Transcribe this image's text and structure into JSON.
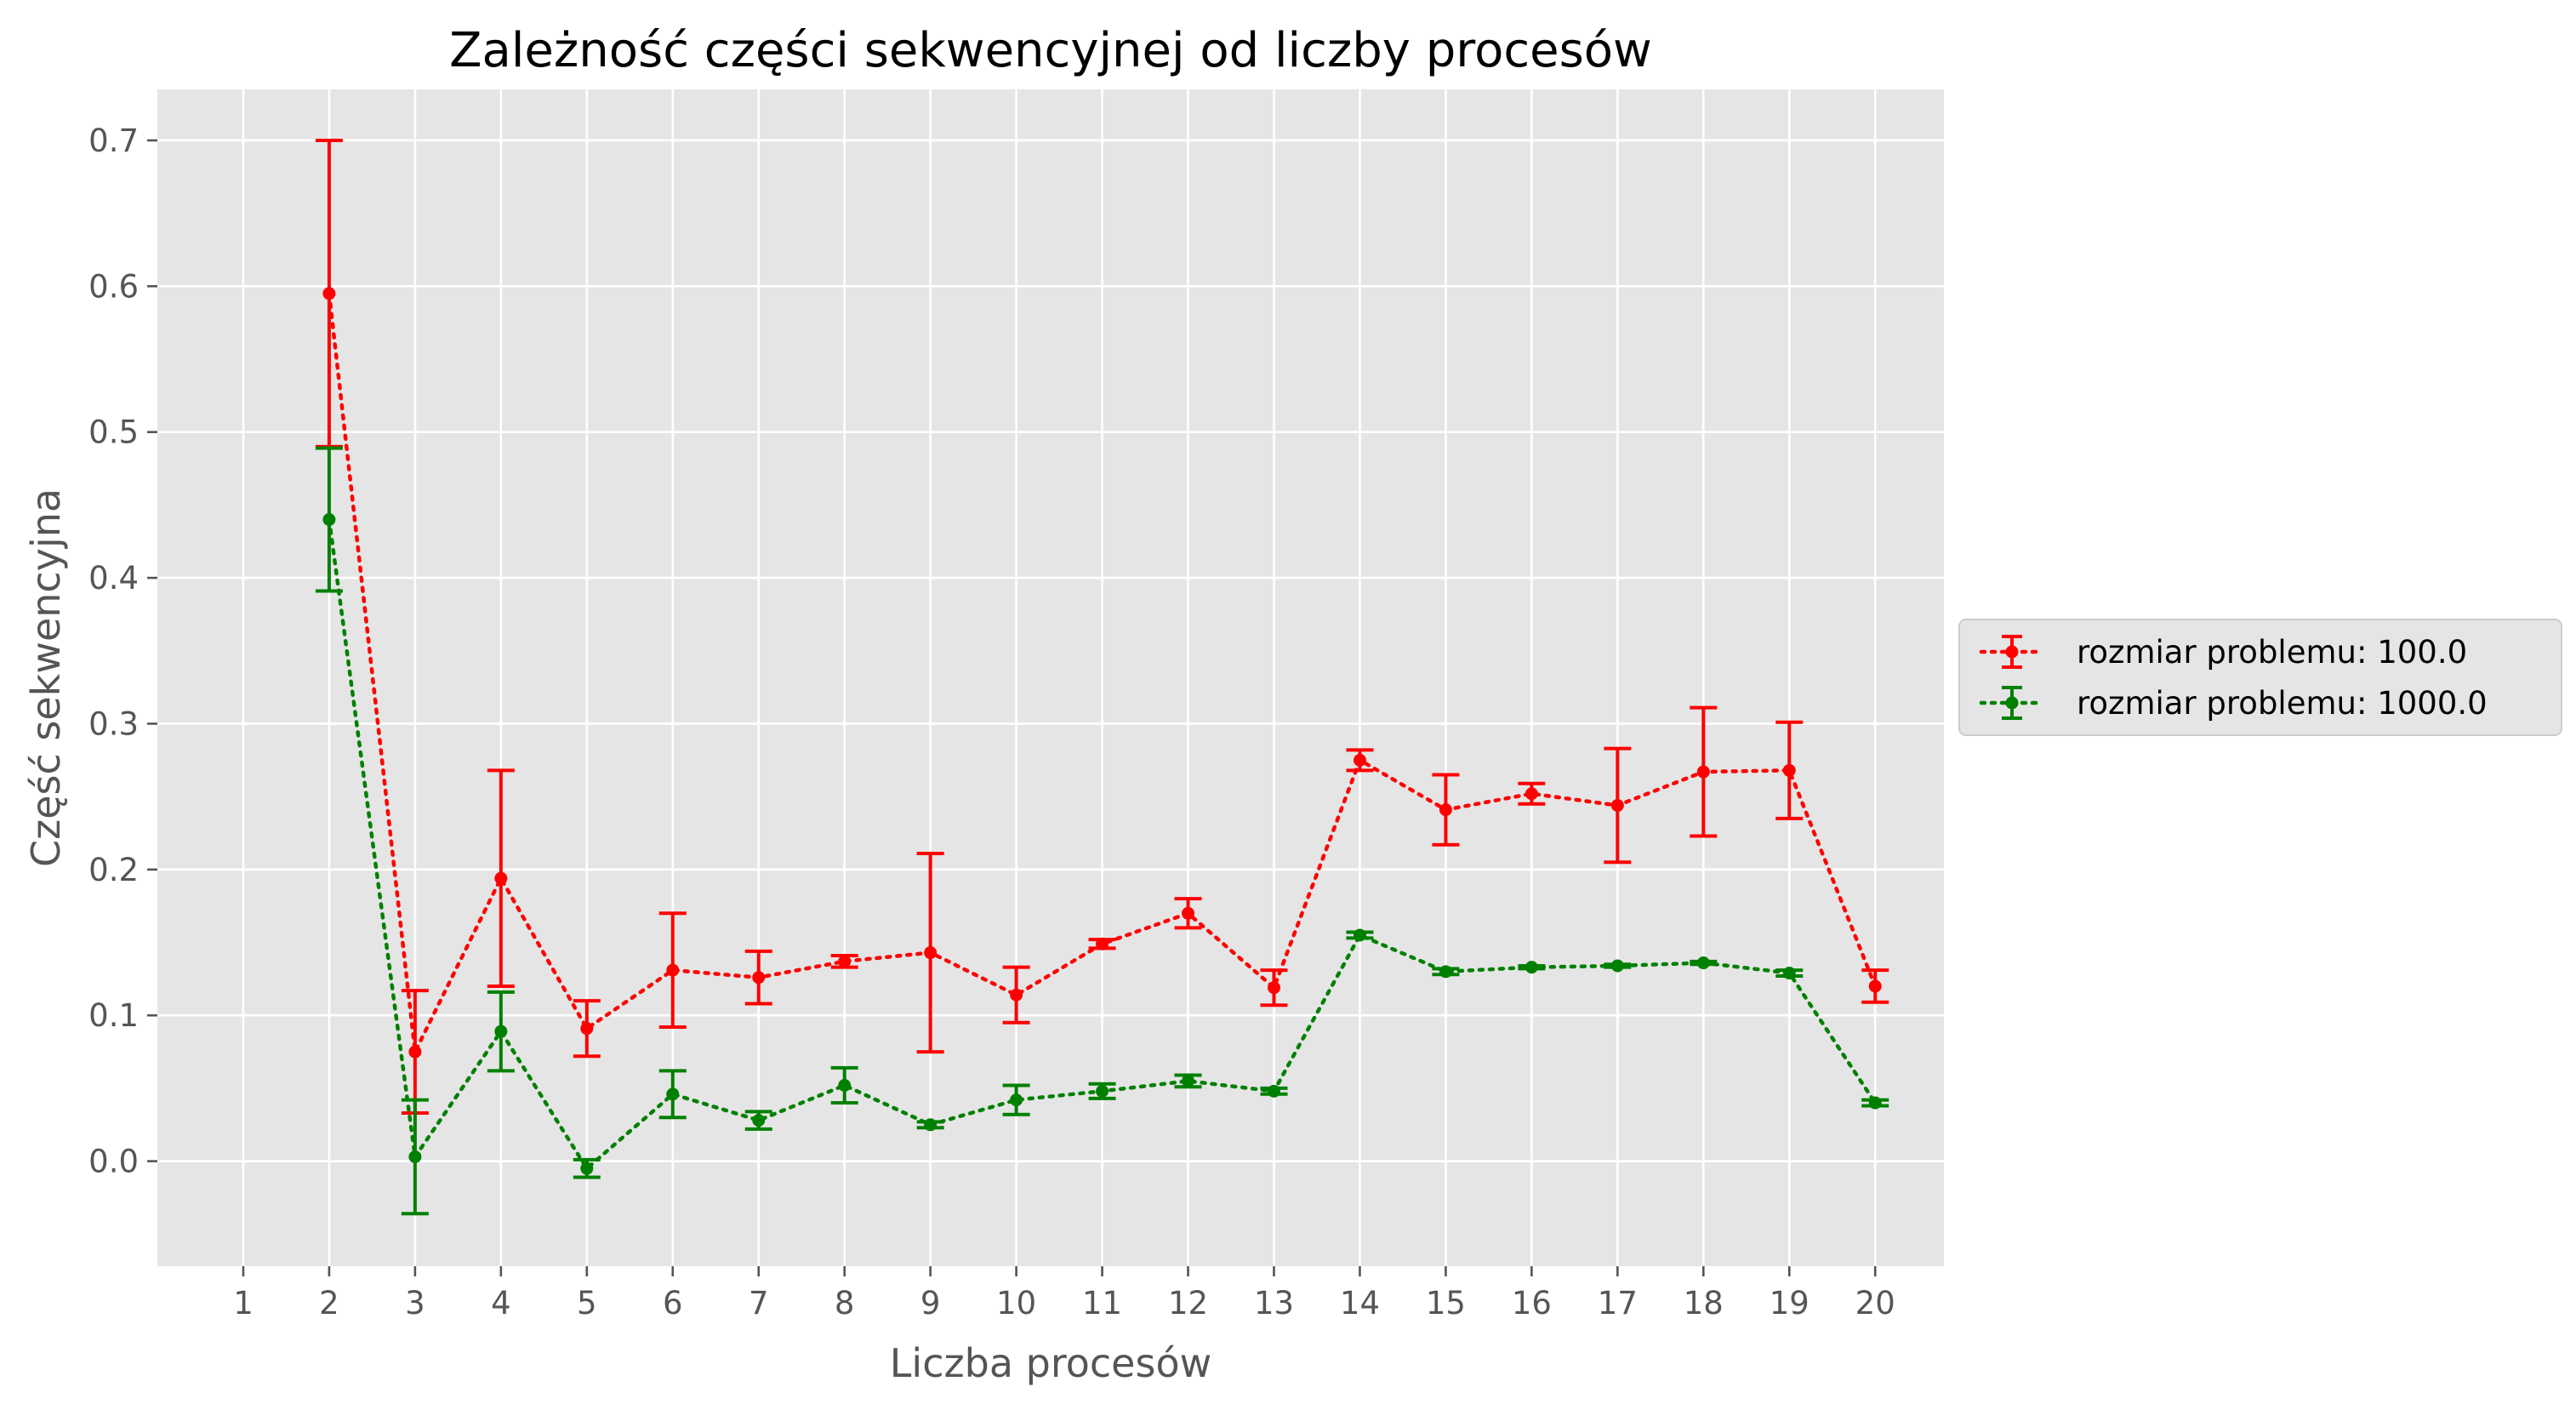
{
  "chart_data": {
    "type": "line",
    "title": "Zależność części sekwencyjnej od liczby procesów",
    "xlabel": "Liczba procesów",
    "ylabel": "Część sekwencyjna",
    "xlim": [
      1,
      20
    ],
    "ylim": [
      -0.072,
      0.735
    ],
    "x_ticks": [
      1,
      2,
      3,
      4,
      5,
      6,
      7,
      8,
      9,
      10,
      11,
      12,
      13,
      14,
      15,
      16,
      17,
      18,
      19,
      20
    ],
    "y_ticks": [
      0.0,
      0.1,
      0.2,
      0.3,
      0.4,
      0.5,
      0.6,
      0.7
    ],
    "y_tick_labels": [
      "0.0",
      "0.1",
      "0.2",
      "0.3",
      "0.4",
      "0.5",
      "0.6",
      "0.7"
    ],
    "grid": true,
    "legend_position": "right",
    "x": [
      2,
      3,
      4,
      5,
      6,
      7,
      8,
      9,
      10,
      11,
      12,
      13,
      14,
      15,
      16,
      17,
      18,
      19,
      20
    ],
    "series": [
      {
        "name": "rozmiar problemu: 100.0",
        "color": "#ff0000",
        "values": [
          0.595,
          0.075,
          0.194,
          0.091,
          0.131,
          0.126,
          0.137,
          0.143,
          0.114,
          0.149,
          0.17,
          0.119,
          0.275,
          0.241,
          0.252,
          0.244,
          0.267,
          0.268,
          0.12
        ],
        "errors": [
          0.105,
          0.042,
          0.074,
          0.019,
          0.039,
          0.018,
          0.004,
          0.068,
          0.019,
          0.003,
          0.01,
          0.012,
          0.007,
          0.024,
          0.007,
          0.039,
          0.044,
          0.033,
          0.011
        ]
      },
      {
        "name": "rozmiar problemu: 1000.0",
        "color": "#008000",
        "values": [
          0.44,
          0.003,
          0.089,
          -0.005,
          0.046,
          0.028,
          0.052,
          0.025,
          0.042,
          0.048,
          0.055,
          0.048,
          0.155,
          0.13,
          0.133,
          0.134,
          0.136,
          0.129,
          0.04
        ],
        "errors": [
          0.049,
          0.039,
          0.027,
          0.006,
          0.016,
          0.006,
          0.012,
          0.002,
          0.01,
          0.005,
          0.004,
          0.002,
          0.002,
          0.002,
          0.001,
          0.001,
          0.001,
          0.002,
          0.002
        ]
      }
    ]
  }
}
